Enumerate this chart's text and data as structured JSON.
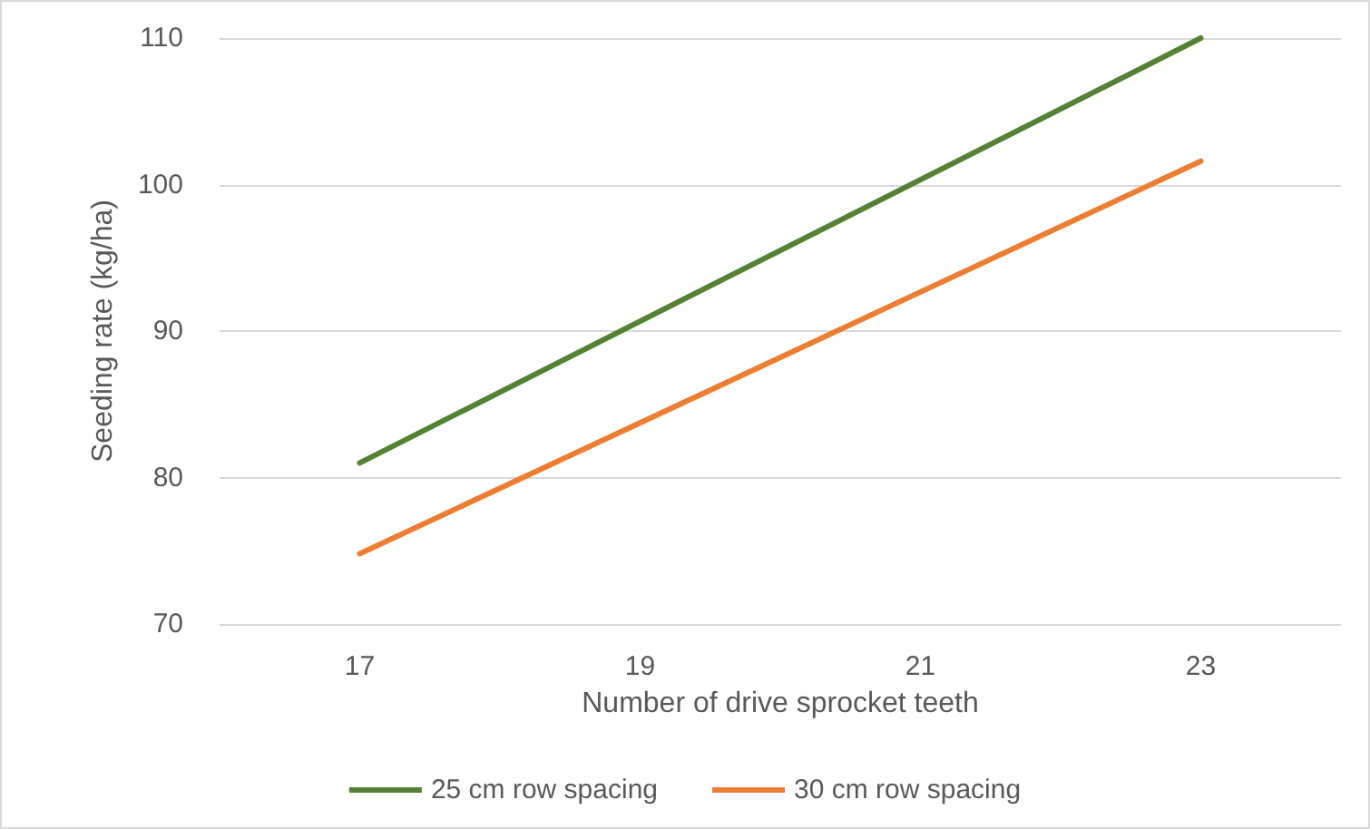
{
  "chart_data": {
    "type": "line",
    "xlabel": "Number of drive sprocket teeth",
    "ylabel": "Seeding rate (kg/ha)",
    "x": [
      17,
      23
    ],
    "xlim": [
      16,
      24
    ],
    "xticks": [
      17,
      19,
      21,
      23
    ],
    "ylim": [
      70,
      110
    ],
    "yticks": [
      70,
      80,
      90,
      100,
      110
    ],
    "grid": "y",
    "legend": "bottom",
    "marker": "none",
    "line_style": "solid",
    "series": [
      {
        "name": "25 cm row spacing",
        "color": "#548235",
        "values": [
          81,
          110
        ]
      },
      {
        "name": "30 cm row spacing",
        "color": "#ed7d31",
        "values": [
          74.8,
          101.6
        ]
      }
    ]
  }
}
